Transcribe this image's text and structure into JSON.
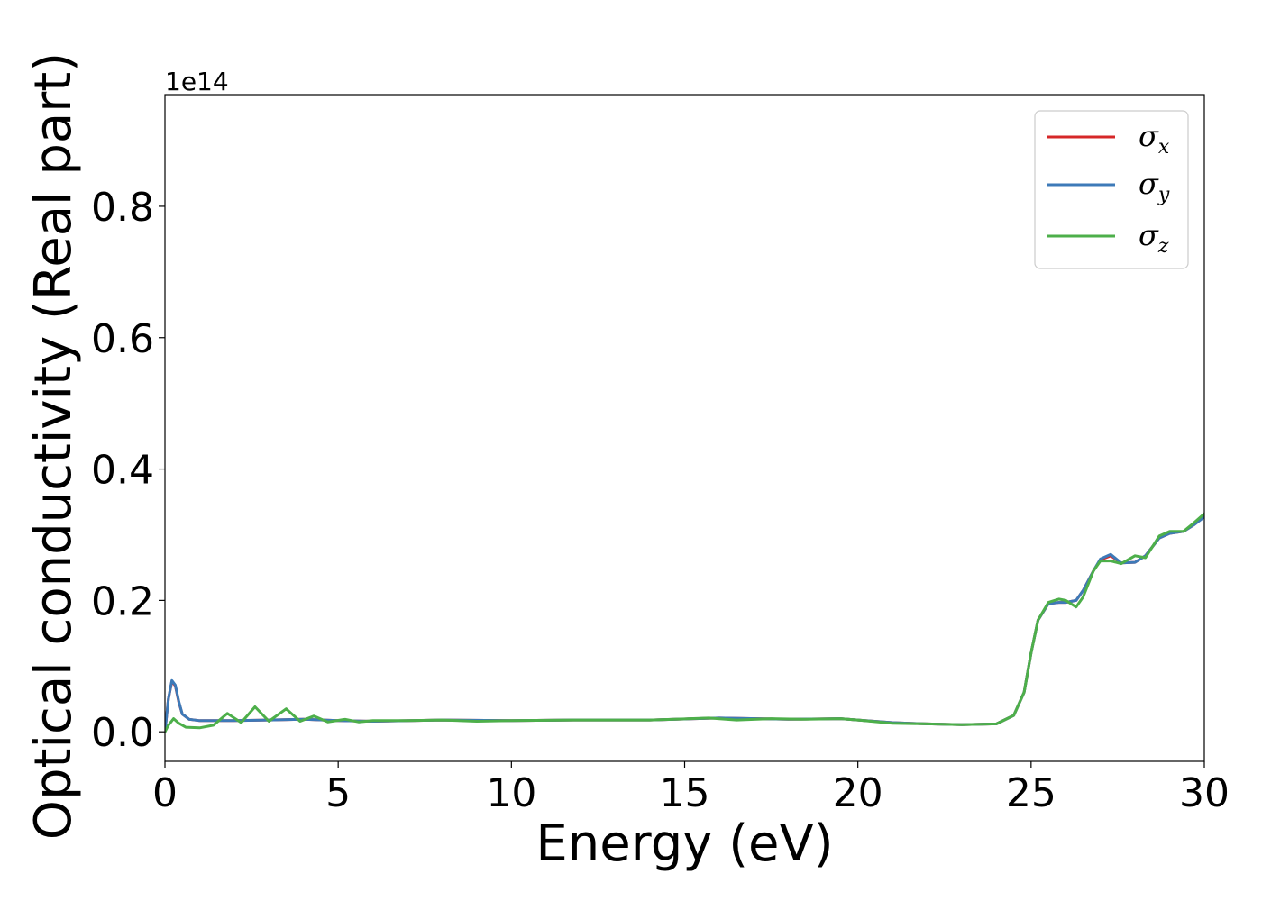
{
  "chart_data": {
    "type": "line",
    "xlabel": "Energy (eV)",
    "ylabel": "Optical conductivity (Real part)",
    "y_offset_text": "1e14",
    "xlim": [
      0,
      30
    ],
    "ylim": [
      -0.045,
      0.97
    ],
    "y_scale_multiplier": 100000000000000.0,
    "x_ticks": [
      0,
      5,
      10,
      15,
      20,
      25,
      30
    ],
    "x_tick_labels": [
      "0",
      "5",
      "10",
      "15",
      "20",
      "25",
      "30"
    ],
    "y_ticks": [
      0.0,
      0.2,
      0.4,
      0.6,
      0.8
    ],
    "y_tick_labels": [
      "0.0",
      "0.2",
      "0.4",
      "0.6",
      "0.8"
    ],
    "grid": false,
    "legend_position": "top-right",
    "series": [
      {
        "name": "σx",
        "legend_base": "σ",
        "legend_sub": "x",
        "color": "#d62728",
        "x": [
          0,
          0.1,
          0.2,
          0.3,
          0.4,
          0.5,
          0.7,
          1.0,
          1.5,
          2.0,
          3.0,
          4.0,
          5.0,
          6.0,
          8.0,
          10.0,
          12.0,
          14.0,
          16.0,
          18.0,
          19.5,
          20.0,
          21.0,
          22.0,
          23.0,
          24.0,
          24.5,
          24.8,
          25.0,
          25.2,
          25.5,
          25.8,
          26.0,
          26.3,
          26.5,
          26.8,
          27.0,
          27.3,
          27.6,
          28.0,
          28.3,
          28.7,
          29.0,
          29.4,
          29.7,
          30.0
        ],
        "y": [
          0.0,
          0.05,
          0.077,
          0.07,
          0.045,
          0.027,
          0.019,
          0.017,
          0.017,
          0.017,
          0.018,
          0.019,
          0.017,
          0.016,
          0.018,
          0.017,
          0.018,
          0.018,
          0.021,
          0.019,
          0.02,
          0.018,
          0.014,
          0.012,
          0.011,
          0.012,
          0.025,
          0.06,
          0.12,
          0.17,
          0.195,
          0.197,
          0.197,
          0.2,
          0.215,
          0.245,
          0.262,
          0.268,
          0.257,
          0.258,
          0.268,
          0.295,
          0.302,
          0.305,
          0.315,
          0.328
        ]
      },
      {
        "name": "σy",
        "legend_base": "σ",
        "legend_sub": "y",
        "color": "#3d7ab8",
        "x": [
          0,
          0.1,
          0.2,
          0.3,
          0.4,
          0.5,
          0.7,
          1.0,
          1.5,
          2.0,
          3.0,
          4.0,
          5.0,
          6.0,
          8.0,
          10.0,
          12.0,
          14.0,
          16.0,
          18.0,
          19.5,
          20.0,
          21.0,
          22.0,
          23.0,
          24.0,
          24.5,
          24.8,
          25.0,
          25.2,
          25.5,
          25.8,
          26.0,
          26.3,
          26.5,
          26.8,
          27.0,
          27.3,
          27.6,
          28.0,
          28.3,
          28.7,
          29.0,
          29.4,
          29.7,
          30.0
        ],
        "y": [
          0.0,
          0.05,
          0.078,
          0.071,
          0.046,
          0.027,
          0.019,
          0.017,
          0.017,
          0.017,
          0.018,
          0.019,
          0.017,
          0.016,
          0.018,
          0.017,
          0.018,
          0.018,
          0.021,
          0.019,
          0.02,
          0.018,
          0.014,
          0.012,
          0.011,
          0.012,
          0.025,
          0.06,
          0.12,
          0.17,
          0.195,
          0.197,
          0.197,
          0.2,
          0.215,
          0.245,
          0.263,
          0.27,
          0.257,
          0.258,
          0.268,
          0.295,
          0.302,
          0.305,
          0.315,
          0.327
        ]
      },
      {
        "name": "σz",
        "legend_base": "σ",
        "legend_sub": "z",
        "color": "#4daf4a",
        "x": [
          0,
          0.1,
          0.25,
          0.4,
          0.6,
          1.0,
          1.4,
          1.8,
          2.2,
          2.6,
          3.0,
          3.5,
          3.9,
          4.3,
          4.7,
          5.2,
          5.6,
          6.0,
          7.0,
          8.0,
          9.0,
          10.0,
          12.0,
          14.0,
          15.7,
          16.5,
          17.5,
          18.5,
          19.5,
          20.0,
          21.0,
          22.0,
          23.0,
          24.0,
          24.5,
          24.8,
          25.0,
          25.2,
          25.5,
          25.8,
          26.0,
          26.3,
          26.5,
          26.8,
          27.0,
          27.3,
          27.6,
          28.0,
          28.3,
          28.7,
          29.0,
          29.4,
          29.7,
          30.0
        ],
        "y": [
          0.0,
          0.01,
          0.02,
          0.013,
          0.007,
          0.006,
          0.01,
          0.028,
          0.014,
          0.038,
          0.016,
          0.035,
          0.016,
          0.024,
          0.015,
          0.019,
          0.015,
          0.017,
          0.017,
          0.018,
          0.016,
          0.017,
          0.018,
          0.018,
          0.021,
          0.018,
          0.02,
          0.019,
          0.02,
          0.018,
          0.013,
          0.012,
          0.011,
          0.012,
          0.025,
          0.06,
          0.12,
          0.17,
          0.197,
          0.202,
          0.2,
          0.19,
          0.205,
          0.245,
          0.26,
          0.26,
          0.256,
          0.268,
          0.265,
          0.298,
          0.305,
          0.305,
          0.318,
          0.332
        ]
      }
    ]
  }
}
